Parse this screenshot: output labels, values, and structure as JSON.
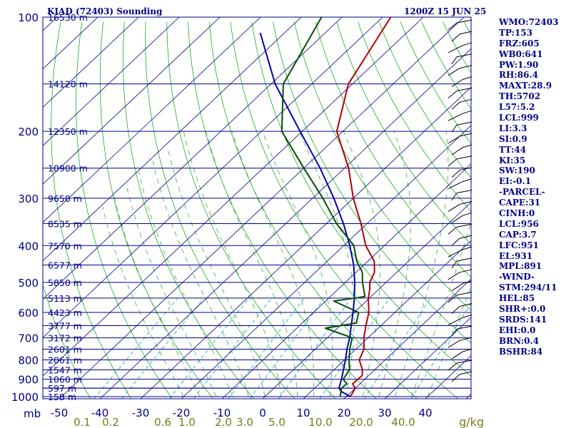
{
  "header": {
    "station": "KIAD (72403) Sounding",
    "time": "1200Z 15 JUN 25"
  },
  "indices": [
    "WMO:72403",
    "TP:153",
    "FRZ:605",
    "WB0:641",
    "PW:1.90",
    "RH:86.4",
    "MAXT:28.9",
    "TH:5702",
    "L57:5.2",
    "LCL:999",
    "LI:3.3",
    "SI:0.9",
    "TT:44",
    "KI:35",
    "SW:190",
    "EI:-0.1",
    "-PARCEL-",
    "CAPE:31",
    "CINH:0",
    "LCL:956",
    "CAP:3.7",
    "LFC:951",
    "EL:931",
    "MPL:891",
    "-WIND-",
    "STM:294/11",
    "HEL:85",
    "SHR+:0.0",
    "SRDS:141",
    "EHI:0.0",
    "BRN:0.4",
    "BSHR:84"
  ],
  "chart_data": {
    "type": "line",
    "title": "KIAD (72403) Sounding",
    "subtitle": "1200Z 15 JUN 25",
    "y_axis": {
      "unit_label": "mb",
      "scale": "log",
      "range": [
        1000,
        100
      ],
      "tick_labels": [
        100,
        200,
        300,
        400,
        500,
        600,
        700,
        800,
        900,
        1000
      ]
    },
    "x_axis": {
      "tick_labels": [
        -50,
        -40,
        -30,
        -20,
        -10,
        0,
        10,
        20,
        30,
        40
      ],
      "skew": true
    },
    "mixing_ratio_axis": {
      "unit_label": "g/kg",
      "tick_labels": [
        "0.1",
        "0.2",
        "0.6",
        "1.0",
        "2.0",
        "3.0",
        "5.0",
        "10.0",
        "20.0",
        "40.0"
      ]
    },
    "height_labels": [
      {
        "p": 100,
        "label": "16530 m"
      },
      {
        "p": 150,
        "label": "14120 m"
      },
      {
        "p": 200,
        "label": "12350 m"
      },
      {
        "p": 250,
        "label": "10900 m"
      },
      {
        "p": 300,
        "label": "9650 m"
      },
      {
        "p": 350,
        "label": "8535 m"
      },
      {
        "p": 400,
        "label": "7570 m"
      },
      {
        "p": 450,
        "label": "6577 m"
      },
      {
        "p": 500,
        "label": "5850 m"
      },
      {
        "p": 550,
        "label": "5113 m"
      },
      {
        "p": 600,
        "label": "4423 m"
      },
      {
        "p": 650,
        "label": "3777 m"
      },
      {
        "p": 700,
        "label": "3172 m"
      },
      {
        "p": 750,
        "label": "2601 m"
      },
      {
        "p": 800,
        "label": "2061 m"
      },
      {
        "p": 850,
        "label": "1547 m"
      },
      {
        "p": 900,
        "label": "1060 m"
      },
      {
        "p": 950,
        "label": "597 m"
      },
      {
        "p": 1000,
        "label": "158 m"
      }
    ],
    "series": [
      {
        "name": "Temperature",
        "color": "#b00000",
        "points": [
          {
            "p": 1000,
            "t": 21
          },
          {
            "p": 950,
            "t": 20
          },
          {
            "p": 925,
            "t": 18.2
          },
          {
            "p": 880,
            "t": 18.4
          },
          {
            "p": 850,
            "t": 17
          },
          {
            "p": 800,
            "t": 13.6
          },
          {
            "p": 750,
            "t": 12
          },
          {
            "p": 700,
            "t": 9
          },
          {
            "p": 650,
            "t": 6.3
          },
          {
            "p": 600,
            "t": 3.6
          },
          {
            "p": 550,
            "t": -0.3
          },
          {
            "p": 520,
            "t": -2.3
          },
          {
            "p": 500,
            "t": -4
          },
          {
            "p": 470,
            "t": -5.5
          },
          {
            "p": 440,
            "t": -8.4
          },
          {
            "p": 400,
            "t": -14.6
          },
          {
            "p": 350,
            "t": -21.5
          },
          {
            "p": 300,
            "t": -30
          },
          {
            "p": 250,
            "t": -39
          },
          {
            "p": 200,
            "t": -51.5
          },
          {
            "p": 150,
            "t": -61
          },
          {
            "p": 100,
            "t": -68
          }
        ]
      },
      {
        "name": "Dewpoint",
        "color": "#005000",
        "points": [
          {
            "p": 1000,
            "t": 18.5
          },
          {
            "p": 950,
            "t": 16.6
          },
          {
            "p": 925,
            "t": 16.8
          },
          {
            "p": 900,
            "t": 14.7
          },
          {
            "p": 850,
            "t": 13.8
          },
          {
            "p": 800,
            "t": 11.1
          },
          {
            "p": 750,
            "t": 8.5
          },
          {
            "p": 700,
            "t": 6.1
          },
          {
            "p": 660,
            "t": -3
          },
          {
            "p": 640,
            "t": 3.3
          },
          {
            "p": 600,
            "t": 1.1
          },
          {
            "p": 560,
            "t": -8
          },
          {
            "p": 545,
            "t": -1.5
          },
          {
            "p": 500,
            "t": -5.8
          },
          {
            "p": 470,
            "t": -8.5
          },
          {
            "p": 440,
            "t": -12.7
          },
          {
            "p": 400,
            "t": -17.5
          },
          {
            "p": 350,
            "t": -27.5
          },
          {
            "p": 300,
            "t": -37.5
          },
          {
            "p": 250,
            "t": -50
          },
          {
            "p": 200,
            "t": -65
          },
          {
            "p": 150,
            "t": -77
          },
          {
            "p": 100,
            "t": -85
          }
        ]
      },
      {
        "name": "Parcel",
        "color": "#0000b0",
        "points": [
          {
            "p": 1000,
            "t": 21
          },
          {
            "p": 970,
            "t": 17.5
          },
          {
            "p": 950,
            "t": 16
          },
          {
            "p": 900,
            "t": 14.3
          },
          {
            "p": 850,
            "t": 12.3
          },
          {
            "p": 800,
            "t": 10.2
          },
          {
            "p": 750,
            "t": 7.8
          },
          {
            "p": 700,
            "t": 5.5
          },
          {
            "p": 650,
            "t": 2.7
          },
          {
            "p": 600,
            "t": -0.3
          },
          {
            "p": 550,
            "t": -3.7
          },
          {
            "p": 500,
            "t": -7.7
          },
          {
            "p": 450,
            "t": -12.5
          },
          {
            "p": 400,
            "t": -18.5
          },
          {
            "p": 350,
            "t": -25.8
          },
          {
            "p": 300,
            "t": -34.8
          },
          {
            "p": 250,
            "t": -46
          },
          {
            "p": 200,
            "t": -60.5
          },
          {
            "p": 150,
            "t": -79
          },
          {
            "p": 110,
            "t": -96
          }
        ]
      }
    ],
    "colors": {
      "frame": "#00008b",
      "isobar": "#00008b",
      "isotherm": "#00008b",
      "dry_adiabat": "#00a000",
      "moist_adiabat": "#2a9a2a",
      "mixing_ratio": "#00a0c0",
      "mixing_ratio_labels": "#7a7a1a",
      "wind_barbs": "#000000"
    }
  }
}
